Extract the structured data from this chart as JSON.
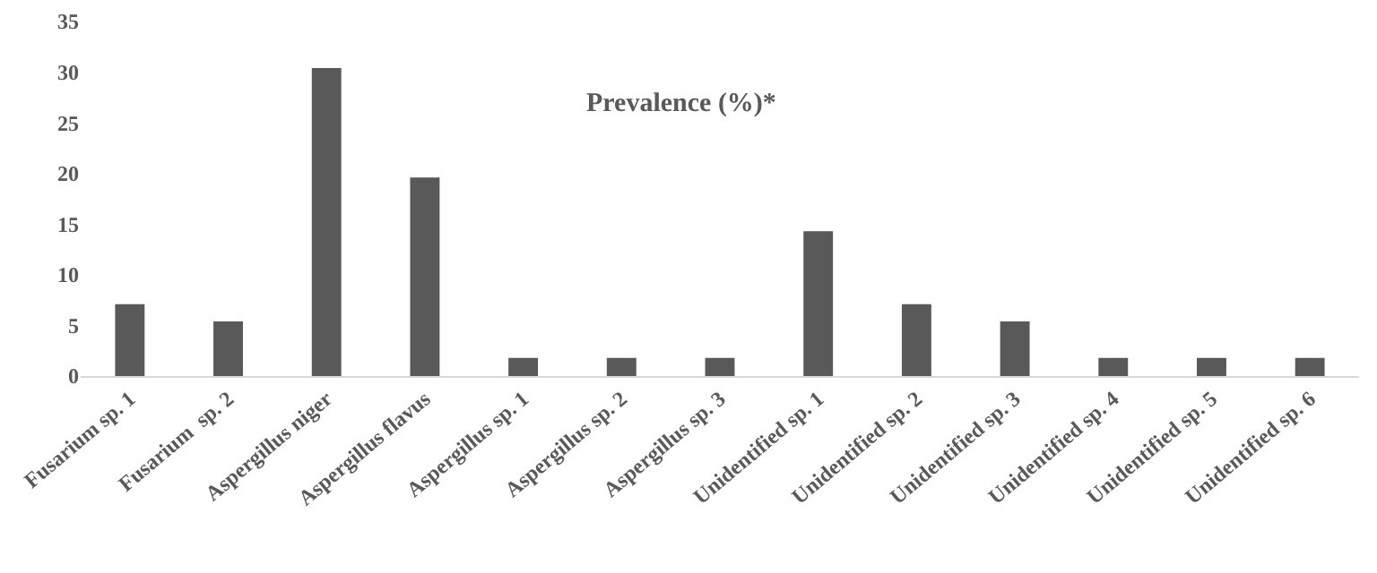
{
  "chart_data": {
    "type": "bar",
    "title": "Prevalence (%)*",
    "categories": [
      "Fusarium sp. 1",
      "Fusarium  sp. 2",
      "Aspergillus niger",
      "Aspergillus flavus",
      "Aspergillus sp. 1",
      "Aspergillus sp. 2",
      "Aspergillus sp. 3",
      "Unidentified sp. 1",
      "Unidentified sp. 2",
      "Unidentified sp. 3",
      "Unidentified sp. 4",
      "Unidentified sp. 5",
      "Unidentified sp. 6"
    ],
    "values": [
      7.1,
      5.4,
      30.4,
      19.6,
      1.8,
      1.8,
      1.8,
      14.3,
      7.1,
      5.4,
      1.8,
      1.8,
      1.8
    ],
    "color": "#595959",
    "ylim": [
      0,
      35
    ],
    "yticks": [
      0,
      5,
      10,
      15,
      20,
      25,
      30,
      35
    ],
    "grid": false,
    "legend": false
  }
}
